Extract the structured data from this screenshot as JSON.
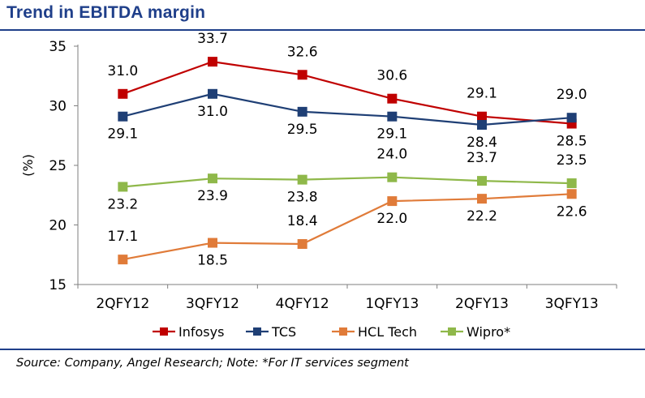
{
  "header": {
    "title": "Trend in EBITDA margin"
  },
  "footer": {
    "source": "Source: Company, Angel Research; Note: *For IT services segment"
  },
  "chart_data": {
    "type": "line",
    "title": "Trend in EBITDA margin",
    "xlabel": "",
    "ylabel": "(%)",
    "ylim": [
      15,
      35
    ],
    "yticks": [
      "15",
      "20",
      "25",
      "30",
      "35"
    ],
    "categories": [
      "2QFY12",
      "3QFY12",
      "4QFY12",
      "1QFY13",
      "2QFY13",
      "3QFY13"
    ],
    "grid": false,
    "legend_position": "bottom",
    "series": [
      {
        "name": "Infosys",
        "color": "#c00000",
        "values": [
          31.0,
          33.7,
          32.6,
          30.6,
          29.1,
          28.5
        ],
        "labels": [
          "31.0",
          "33.7",
          "32.6",
          "30.6",
          "29.1",
          "28.5"
        ],
        "label_side": [
          "above",
          "above",
          "above",
          "above",
          "above",
          "below"
        ]
      },
      {
        "name": "TCS",
        "color": "#1f3f75",
        "values": [
          29.1,
          31.0,
          29.5,
          29.1,
          28.4,
          29.0
        ],
        "labels": [
          "29.1",
          "31.0",
          "29.5",
          "29.1",
          "28.4",
          "29.0"
        ],
        "label_side": [
          "below",
          "below",
          "below",
          "below",
          "below",
          "above"
        ]
      },
      {
        "name": "HCL Tech",
        "color": "#e07b39",
        "values": [
          17.1,
          18.5,
          18.4,
          22.0,
          22.2,
          22.6
        ],
        "labels": [
          "17.1",
          "18.5",
          "18.4",
          "22.0",
          "22.2",
          "22.6"
        ],
        "label_side": [
          "above",
          "below",
          "above",
          "below",
          "below",
          "below"
        ]
      },
      {
        "name": "Wipro*",
        "color": "#8fb84a",
        "values": [
          23.2,
          23.9,
          23.8,
          24.0,
          23.7,
          23.5
        ],
        "labels": [
          "23.2",
          "23.9",
          "23.8",
          "24.0",
          "23.7",
          "23.5"
        ],
        "label_side": [
          "below",
          "below",
          "below",
          "above",
          "above",
          "above"
        ]
      }
    ]
  }
}
